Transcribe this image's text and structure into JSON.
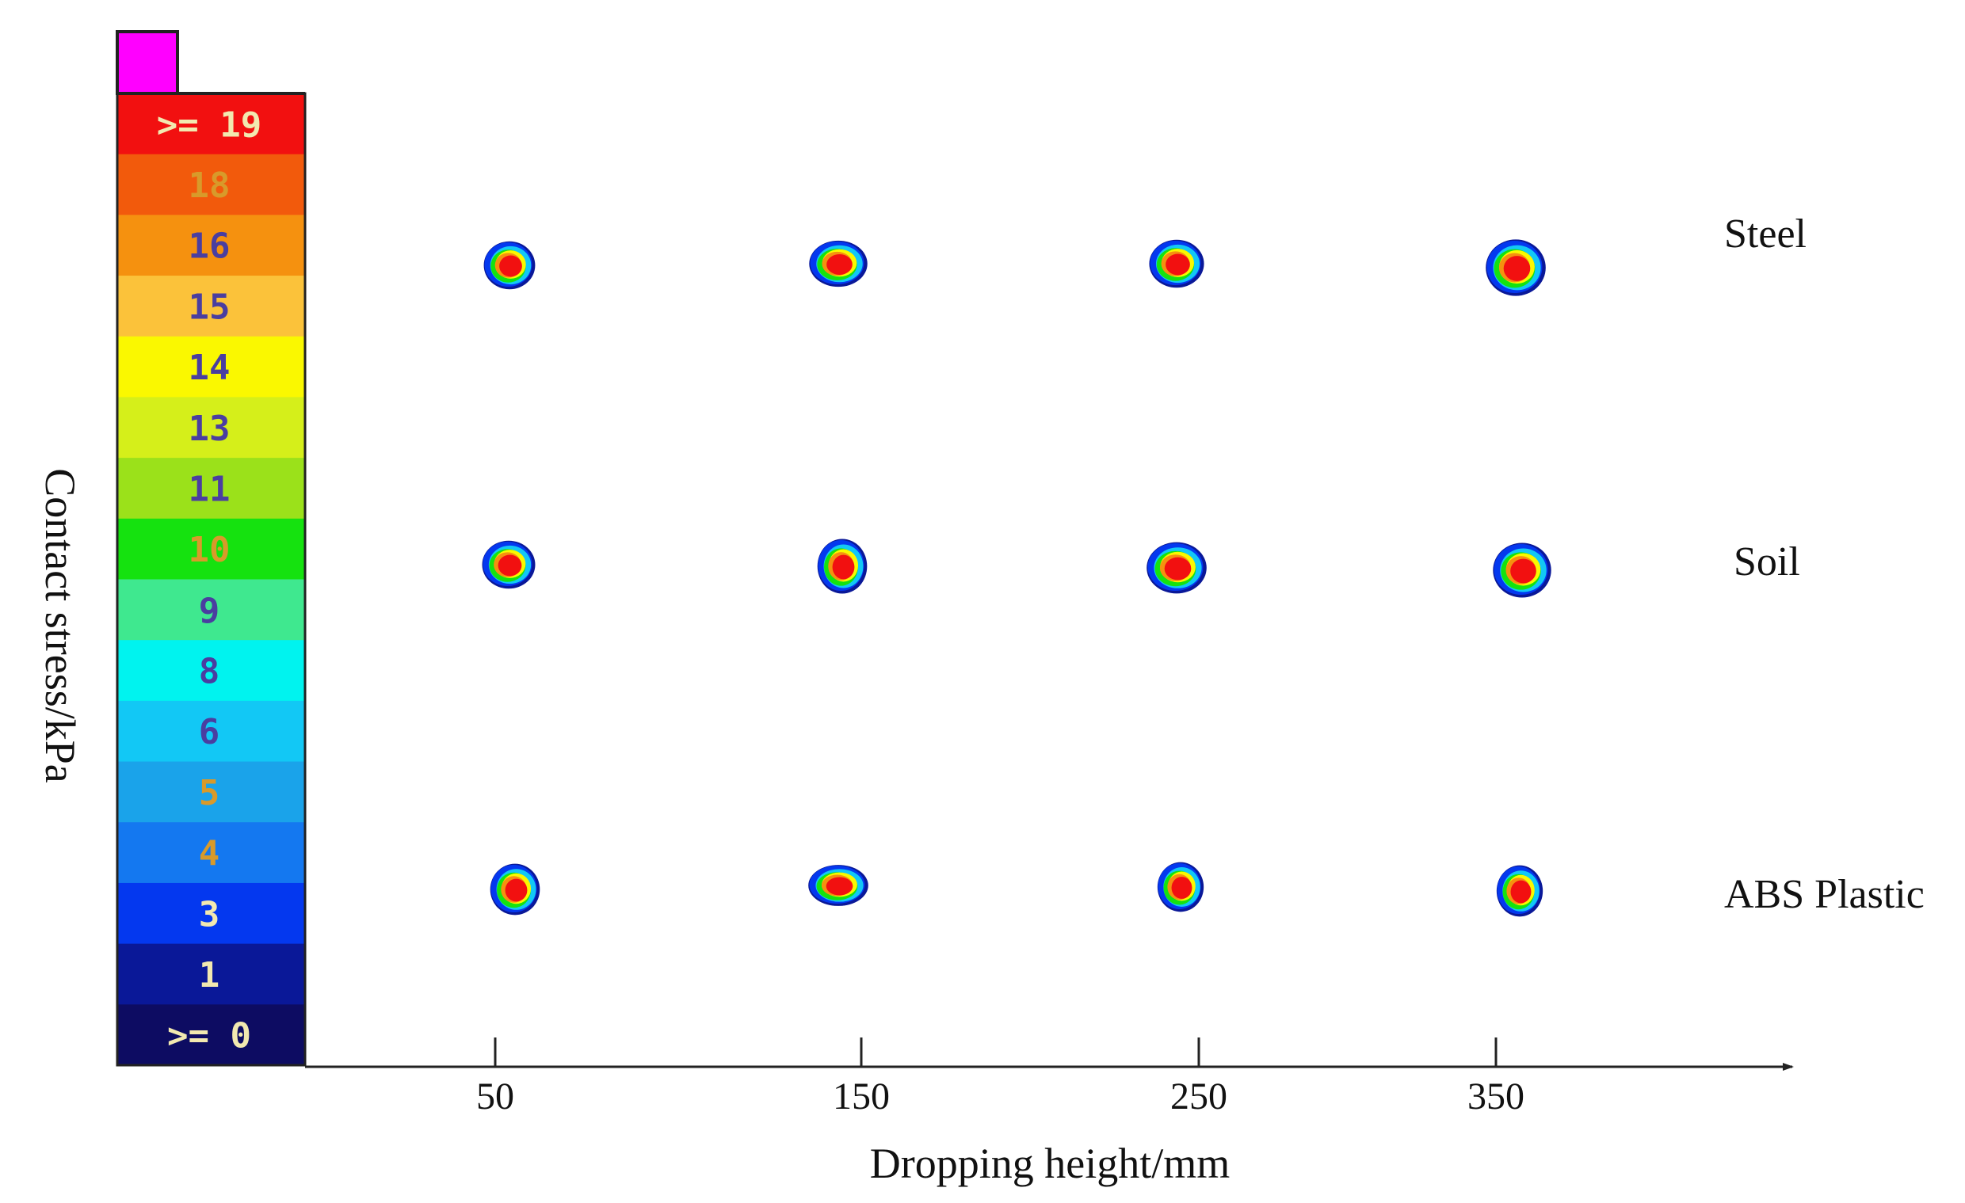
{
  "chart_data": {
    "type": "heatmap",
    "title": "",
    "xlabel": "Dropping height/mm",
    "ylabel": "Contact stress/kPa",
    "x_ticks": [
      "50",
      "150",
      "250",
      "350"
    ],
    "rows": [
      "Steel",
      "Soil",
      "ABS Plastic"
    ],
    "legend": {
      "placement": "left",
      "entries": [
        {
          "label": ">= 19",
          "color": "#f21010"
        },
        {
          "label": "18",
          "color": "#f25a0c"
        },
        {
          "label": "16",
          "color": "#f5910f"
        },
        {
          "label": "15",
          "color": "#fbc23a"
        },
        {
          "label": "14",
          "color": "#faf800"
        },
        {
          "label": "13",
          "color": "#d5ef1a"
        },
        {
          "label": "11",
          "color": "#9be11a"
        },
        {
          "label": "10",
          "color": "#15e20f"
        },
        {
          "label": "9",
          "color": "#3fe88f"
        },
        {
          "label": "8",
          "color": "#00f3ef"
        },
        {
          "label": "6",
          "color": "#12c8f5"
        },
        {
          "label": "5",
          "color": "#1aa3ea"
        },
        {
          "label": "4",
          "color": "#1478f0"
        },
        {
          "label": "3",
          "color": "#0438ef"
        },
        {
          "label": "1",
          "color": "#0a1898"
        },
        {
          "label": ">= 0",
          "color": "#0d0c62"
        }
      ],
      "overflow_color": "#ff00ff"
    }
  }
}
